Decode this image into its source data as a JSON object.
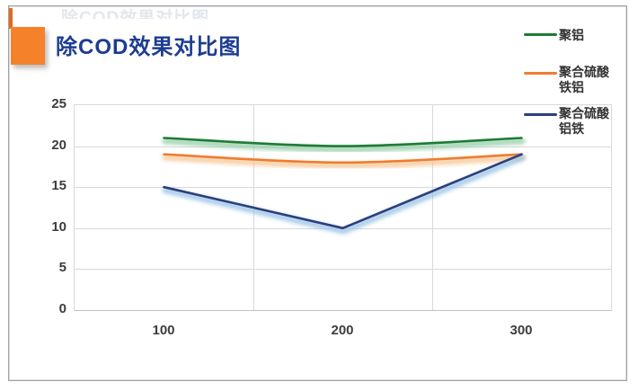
{
  "title": "除COD效果对比图",
  "decor": {
    "ghost_text": "除COD效果对比图"
  },
  "colors": {
    "title": "#1d3c92",
    "accent_square": "#f5822b",
    "accent_bar": "#e06c1a",
    "frame_border": "#9fa1a6",
    "gridline": "#d9d9d9",
    "axis_text": "#3d3d3d"
  },
  "chart_data": {
    "type": "line",
    "title": "除COD效果对比图",
    "xlabel": "",
    "ylabel": "",
    "x_labels": [
      "100",
      "200",
      "300"
    ],
    "y_ticks": [
      "25",
      "20",
      "15",
      "10",
      "5",
      "0"
    ],
    "ylim": [
      0,
      25
    ],
    "grid": true,
    "legend_position": "right",
    "series": [
      {
        "name": "聚铝",
        "color": "#1e7b34",
        "glow": "#8fcca4",
        "smooth": true,
        "values": [
          21,
          20,
          21
        ]
      },
      {
        "name": "聚合硫酸铁铝",
        "color": "#ee7d2f",
        "glow": "#f6c491",
        "smooth": true,
        "values": [
          19,
          18,
          19
        ]
      },
      {
        "name": "聚合硫酸铝铁",
        "color": "#2b3f7e",
        "glow": "#95c1e4",
        "smooth": false,
        "values": [
          15,
          10,
          19
        ]
      }
    ]
  }
}
